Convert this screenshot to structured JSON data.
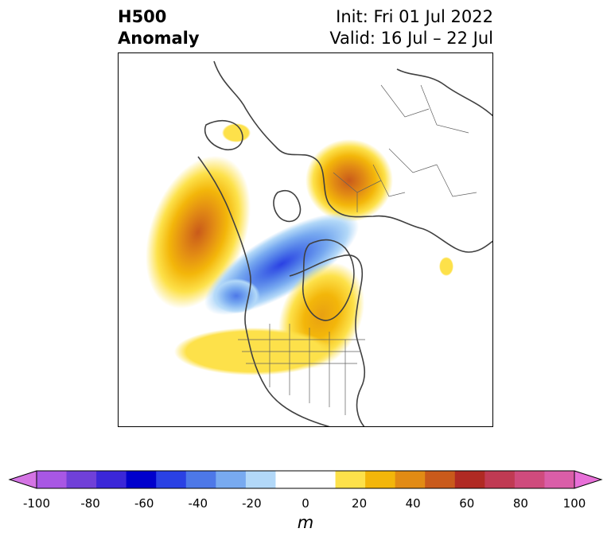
{
  "header": {
    "title_line1": "H500",
    "title_line2": "Anomaly",
    "init_text": "Init: Fri 01 Jul 2022",
    "valid_text": "Valid: 16 Jul – 22 Jul"
  },
  "map": {
    "projection": "north-polar-stereographic",
    "features": [
      "coastlines",
      "country-borders",
      "us-state-borders"
    ],
    "anomaly_centers": [
      {
        "region": "Northeast Pacific / Gulf of Alaska",
        "sign": "positive",
        "peak_m": 55
      },
      {
        "region": "Scandinavia / Barents Sea",
        "sign": "positive",
        "peak_m": 50
      },
      {
        "region": "Canadian Arctic / Beaufort Sea",
        "sign": "negative",
        "peak_m": -45
      },
      {
        "region": "Eastern Canada / Greenland",
        "sign": "positive",
        "peak_m": 25
      },
      {
        "region": "Central United States",
        "sign": "positive",
        "peak_m": 15
      }
    ]
  },
  "colorbar": {
    "unit_label": "m",
    "tick_labels": [
      "-100",
      "-80",
      "-60",
      "-40",
      "-20",
      "0",
      "20",
      "40",
      "60",
      "80",
      "100"
    ],
    "colors": [
      "#d474e4",
      "#a857e4",
      "#7040d8",
      "#3b27d8",
      "#0000cc",
      "#2a41e4",
      "#4d78e8",
      "#78aaf0",
      "#b2d8f8",
      "#ffffff",
      "#ffffff",
      "#fde14a",
      "#f3b60a",
      "#e28b14",
      "#c95a1b",
      "#b02a23",
      "#c03a53",
      "#cf4b7d",
      "#da5ea8",
      "#e870d8"
    ],
    "extend": "both"
  }
}
